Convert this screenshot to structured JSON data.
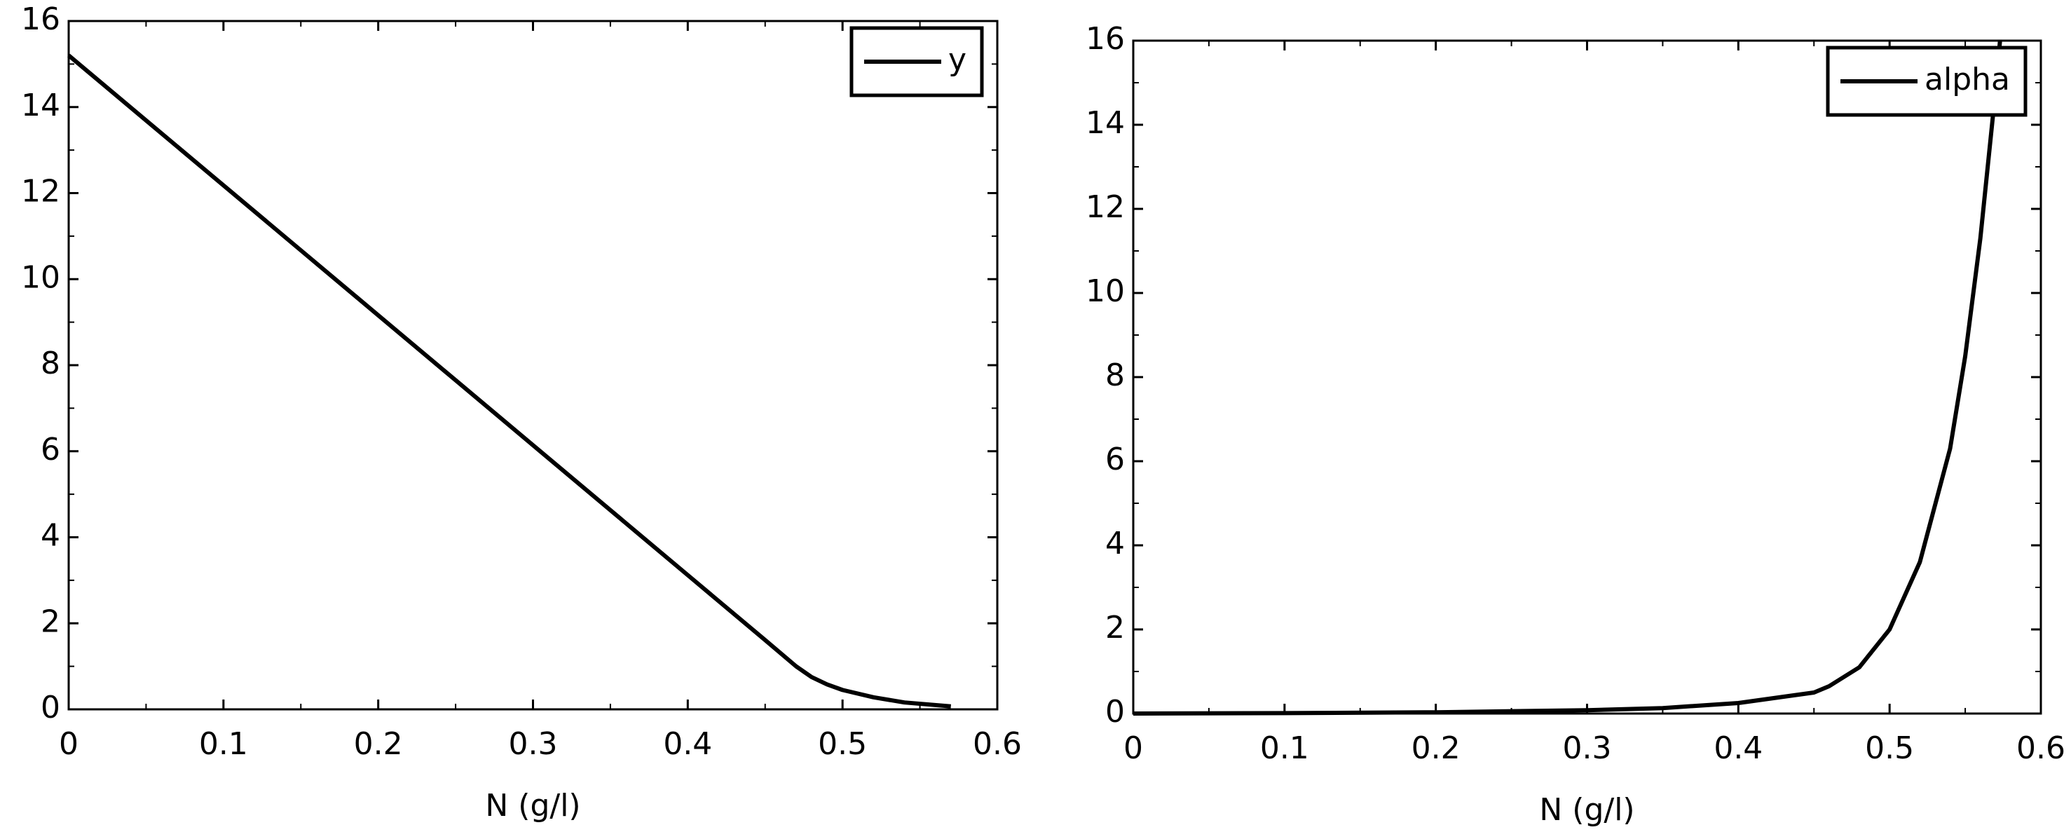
{
  "chart_data": [
    {
      "type": "line",
      "xlabel": "N (g/l)",
      "x": [
        0,
        0.05,
        0.1,
        0.15,
        0.2,
        0.25,
        0.3,
        0.35,
        0.4,
        0.45,
        0.47,
        0.48,
        0.49,
        0.5,
        0.52,
        0.54,
        0.57
      ],
      "series": [
        {
          "name": "y",
          "color": "#000000",
          "values": [
            15.2,
            13.69,
            12.18,
            10.67,
            9.16,
            7.65,
            6.14,
            4.63,
            3.12,
            1.61,
            1.0,
            0.75,
            0.58,
            0.45,
            0.28,
            0.16,
            0.07
          ]
        }
      ],
      "xlim": [
        0,
        0.6
      ],
      "ylim": [
        0,
        16
      ],
      "xticks": [
        0,
        0.1,
        0.2,
        0.3,
        0.4,
        0.5,
        0.6
      ],
      "yticks": [
        0,
        2,
        4,
        6,
        8,
        10,
        12,
        14,
        16
      ],
      "legend": "upper right"
    },
    {
      "type": "line",
      "xlabel": "N (g/l)",
      "x": [
        0,
        0.1,
        0.2,
        0.3,
        0.35,
        0.4,
        0.45,
        0.46,
        0.48,
        0.5,
        0.52,
        0.54,
        0.55,
        0.56,
        0.57,
        0.573
      ],
      "series": [
        {
          "name": "alpha",
          "color": "#000000",
          "values": [
            0,
            0.01,
            0.03,
            0.08,
            0.13,
            0.25,
            0.5,
            0.65,
            1.1,
            2.0,
            3.6,
            6.3,
            8.5,
            11.3,
            14.8,
            16
          ]
        }
      ],
      "xlim": [
        0,
        0.6
      ],
      "ylim": [
        0,
        16
      ],
      "xticks": [
        0,
        0.1,
        0.2,
        0.3,
        0.4,
        0.5,
        0.6
      ],
      "yticks": [
        0,
        2,
        4,
        6,
        8,
        10,
        12,
        14,
        16
      ],
      "legend": "upper right"
    }
  ]
}
